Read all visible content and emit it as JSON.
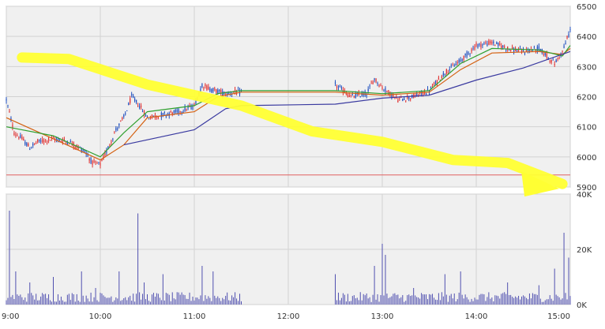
{
  "chart_data": [
    {
      "type": "candlestick",
      "x_ticks": [
        "9:00",
        "10:00",
        "11:00",
        "12:00",
        "13:00",
        "14:00",
        "15:00"
      ],
      "ylim": [
        5900,
        6500
      ],
      "y_ticks": [
        "5900",
        "6000",
        "6100",
        "6200",
        "6300",
        "6400",
        "6500"
      ],
      "grid": true,
      "reference_line": {
        "value": 5940,
        "color": "#e06060"
      },
      "sessions": [
        {
          "start": "9:00",
          "end": "11:30"
        },
        {
          "start": "12:30",
          "end": "15:00"
        }
      ],
      "price_path": [
        [
          "9:00",
          6190
        ],
        [
          "9:05",
          6080
        ],
        [
          "9:10",
          6060
        ],
        [
          "9:15",
          6030
        ],
        [
          "9:20",
          6050
        ],
        [
          "9:30",
          6060
        ],
        [
          "9:40",
          6050
        ],
        [
          "9:50",
          6020
        ],
        [
          "9:55",
          5980
        ],
        [
          "10:00",
          5975
        ],
        [
          "10:05",
          6030
        ],
        [
          "10:10",
          6090
        ],
        [
          "10:15",
          6130
        ],
        [
          "10:20",
          6200
        ],
        [
          "10:25",
          6170
        ],
        [
          "10:30",
          6130
        ],
        [
          "10:40",
          6140
        ],
        [
          "10:50",
          6150
        ],
        [
          "11:00",
          6170
        ],
        [
          "11:05",
          6240
        ],
        [
          "11:10",
          6225
        ],
        [
          "11:20",
          6210
        ],
        [
          "11:25",
          6215
        ],
        [
          "11:30",
          6215
        ],
        [
          "12:30",
          6240
        ],
        [
          "12:40",
          6200
        ],
        [
          "12:50",
          6210
        ],
        [
          "12:55",
          6260
        ],
        [
          "13:00",
          6230
        ],
        [
          "13:10",
          6190
        ],
        [
          "13:20",
          6200
        ],
        [
          "13:30",
          6220
        ],
        [
          "13:40",
          6280
        ],
        [
          "13:45",
          6300
        ],
        [
          "13:50",
          6320
        ],
        [
          "14:00",
          6370
        ],
        [
          "14:10",
          6380
        ],
        [
          "14:20",
          6360
        ],
        [
          "14:30",
          6350
        ],
        [
          "14:40",
          6360
        ],
        [
          "14:50",
          6310
        ],
        [
          "14:55",
          6350
        ],
        [
          "15:00",
          6420
        ]
      ],
      "moving_averages": [
        {
          "color": "#d46010",
          "points": [
            [
              "9:00",
              6130
            ],
            [
              "9:30",
              6060
            ],
            [
              "10:00",
              5990
            ],
            [
              "10:15",
              6040
            ],
            [
              "10:30",
              6130
            ],
            [
              "11:00",
              6150
            ],
            [
              "11:15",
              6200
            ],
            [
              "11:30",
              6215
            ],
            [
              "12:30",
              6215
            ],
            [
              "13:00",
              6205
            ],
            [
              "13:30",
              6215
            ],
            [
              "13:50",
              6290
            ],
            [
              "14:10",
              6345
            ],
            [
              "14:40",
              6350
            ],
            [
              "14:55",
              6340
            ],
            [
              "15:00",
              6360
            ]
          ]
        },
        {
          "color": "#30a030",
          "points": [
            [
              "9:00",
              6100
            ],
            [
              "9:30",
              6070
            ],
            [
              "10:00",
              6000
            ],
            [
              "10:15",
              6080
            ],
            [
              "10:30",
              6150
            ],
            [
              "11:00",
              6170
            ],
            [
              "11:15",
              6210
            ],
            [
              "11:30",
              6220
            ],
            [
              "12:30",
              6220
            ],
            [
              "13:00",
              6210
            ],
            [
              "13:30",
              6220
            ],
            [
              "13:50",
              6310
            ],
            [
              "14:10",
              6360
            ],
            [
              "14:40",
              6355
            ],
            [
              "14:55",
              6335
            ],
            [
              "15:00",
              6370
            ]
          ]
        },
        {
          "color": "#3a3aa0",
          "points": [
            [
              "10:15",
              6040
            ],
            [
              "11:00",
              6090
            ],
            [
              "11:20",
              6160
            ],
            [
              "11:30",
              6170
            ],
            [
              "12:30",
              6175
            ],
            [
              "13:00",
              6195
            ],
            [
              "13:30",
              6205
            ],
            [
              "14:00",
              6255
            ],
            [
              "14:30",
              6295
            ],
            [
              "15:00",
              6350
            ]
          ]
        }
      ]
    },
    {
      "type": "bar",
      "x_ticks": [
        "9:00",
        "10:00",
        "11:00",
        "12:00",
        "13:00",
        "14:00",
        "15:00"
      ],
      "ylim": [
        0,
        40000
      ],
      "y_ticks": [
        "0K",
        "20K",
        "40K"
      ],
      "grid": true,
      "volume_spikes": [
        [
          "9:02",
          34000
        ],
        [
          "9:06",
          12000
        ],
        [
          "9:15",
          8000
        ],
        [
          "9:30",
          10000
        ],
        [
          "9:48",
          12000
        ],
        [
          "9:57",
          6000
        ],
        [
          "10:12",
          12000
        ],
        [
          "10:24",
          33000
        ],
        [
          "10:28",
          8000
        ],
        [
          "10:40",
          11000
        ],
        [
          "11:05",
          14000
        ],
        [
          "11:12",
          12000
        ],
        [
          "12:30",
          11000
        ],
        [
          "12:55",
          14000
        ],
        [
          "13:00",
          22000
        ],
        [
          "13:02",
          18000
        ],
        [
          "13:20",
          6000
        ],
        [
          "13:40",
          11000
        ],
        [
          "13:50",
          12000
        ],
        [
          "14:20",
          8000
        ],
        [
          "14:40",
          7000
        ],
        [
          "14:50",
          13000
        ],
        [
          "14:56",
          26000
        ],
        [
          "14:59",
          17000
        ]
      ],
      "volume_baseline": 3000
    }
  ],
  "annotation": {
    "type": "arrow",
    "color": "#ffff33",
    "path_values": [
      [
        "9:10",
        6330
      ],
      [
        "9:40",
        6325
      ],
      [
        "10:30",
        6240
      ],
      [
        "11:30",
        6170
      ],
      [
        "12:15",
        6085
      ],
      [
        "13:00",
        6050
      ],
      [
        "13:45",
        5990
      ],
      [
        "14:20",
        5980
      ],
      [
        "14:55",
        5910
      ]
    ]
  }
}
